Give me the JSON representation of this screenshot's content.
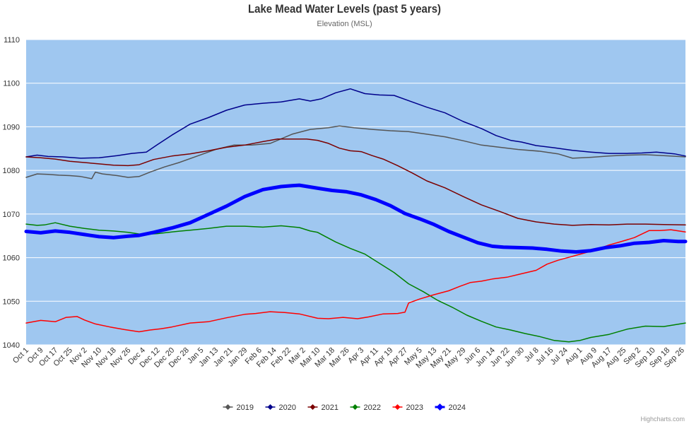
{
  "chart_data": {
    "type": "line",
    "title": "Lake Mead Water Levels (past 5 years)",
    "subtitle": "Elevation (MSL)",
    "credits": "Highcharts.com",
    "xlabel": "",
    "ylabel": "",
    "ylim": [
      1040,
      1110
    ],
    "yticks": [
      "1040",
      "1050",
      "1060",
      "1070",
      "1080",
      "1090",
      "1100",
      "1110"
    ],
    "xlim": [
      0,
      362
    ],
    "x_tick_positions": [
      0,
      8,
      16,
      24,
      32,
      40,
      48,
      56,
      64,
      72,
      80,
      88,
      96,
      104,
      112,
      120,
      128,
      136,
      144,
      152,
      160,
      168,
      176,
      184,
      192,
      200,
      208,
      216,
      224,
      232,
      240,
      248,
      256,
      264,
      272,
      280,
      288,
      296,
      304,
      312,
      320,
      328,
      336,
      344,
      352,
      360
    ],
    "categories": [
      "Oct 1",
      "Oct 9",
      "Oct 17",
      "Oct 25",
      "Nov 2",
      "Nov 10",
      "Nov 18",
      "Nov 26",
      "Dec 4",
      "Dec 12",
      "Dec 20",
      "Dec 28",
      "Jan 5",
      "Jan 13",
      "Jan 21",
      "Jan 29",
      "Feb 6",
      "Feb 14",
      "Feb 22",
      "Mar 2",
      "Mar 10",
      "Mar 18",
      "Mar 26",
      "Apr 3",
      "Apr 11",
      "Apr 19",
      "Apr 27",
      "May 5",
      "May 13",
      "May 21",
      "May 29",
      "Jun 6",
      "Jun 14",
      "Jun 22",
      "Jun 30",
      "Jul 8",
      "Jul 16",
      "Jul 24",
      "Aug 1",
      "Aug 9",
      "Aug 17",
      "Aug 25",
      "Sep 2",
      "Sep 10",
      "Sep 18",
      "Sep 26"
    ],
    "series": [
      {
        "name": "2019",
        "color": "#555555",
        "width": 1.5,
        "x": [
          0,
          6,
          12,
          18,
          24,
          30,
          36,
          38,
          42,
          50,
          56,
          62,
          68,
          76,
          84,
          96,
          104,
          114,
          124,
          134,
          146,
          156,
          166,
          172,
          180,
          190,
          200,
          210,
          220,
          230,
          240,
          250,
          260,
          270,
          282,
          292,
          300,
          310,
          320,
          330,
          340,
          350,
          362
        ],
        "values": [
          1078.4,
          1079.2,
          1079.1,
          1078.9,
          1078.8,
          1078.6,
          1078.1,
          1079.6,
          1079.2,
          1078.8,
          1078.4,
          1078.6,
          1079.6,
          1080.8,
          1081.8,
          1083.6,
          1084.8,
          1085.8,
          1085.8,
          1086.2,
          1088.3,
          1089.4,
          1089.8,
          1090.2,
          1089.8,
          1089.4,
          1089.1,
          1088.9,
          1088.3,
          1087.7,
          1086.8,
          1085.8,
          1085.3,
          1084.8,
          1084.4,
          1083.8,
          1082.8,
          1083.0,
          1083.3,
          1083.5,
          1083.6,
          1083.4,
          1083.1
        ]
      },
      {
        "name": "2020",
        "color": "#00008b",
        "width": 1.5,
        "x": [
          0,
          6,
          12,
          20,
          30,
          40,
          50,
          58,
          66,
          72,
          80,
          90,
          100,
          110,
          120,
          130,
          140,
          150,
          156,
          162,
          170,
          178,
          186,
          194,
          202,
          210,
          220,
          230,
          240,
          250,
          258,
          266,
          272,
          280,
          290,
          300,
          310,
          320,
          330,
          338,
          346,
          356,
          362
        ],
        "values": [
          1083.1,
          1083.5,
          1083.2,
          1083.1,
          1082.8,
          1082.9,
          1083.4,
          1083.9,
          1084.2,
          1085.9,
          1088.1,
          1090.6,
          1092.1,
          1093.8,
          1095.0,
          1095.4,
          1095.7,
          1096.4,
          1095.9,
          1096.4,
          1097.8,
          1098.7,
          1097.6,
          1097.3,
          1097.2,
          1096.0,
          1094.5,
          1093.2,
          1091.2,
          1089.6,
          1088.0,
          1086.9,
          1086.5,
          1085.7,
          1085.2,
          1084.6,
          1084.2,
          1083.9,
          1083.9,
          1084.0,
          1084.2,
          1083.8,
          1083.3
        ]
      },
      {
        "name": "2021",
        "color": "#7b0000",
        "width": 1.5,
        "x": [
          0,
          8,
          16,
          24,
          32,
          40,
          48,
          56,
          62,
          70,
          80,
          90,
          100,
          110,
          120,
          130,
          138,
          146,
          154,
          160,
          166,
          172,
          178,
          184,
          190,
          196,
          204,
          212,
          220,
          230,
          240,
          250,
          260,
          270,
          280,
          290,
          300,
          310,
          320,
          330,
          340,
          350,
          362
        ],
        "values": [
          1083.1,
          1082.9,
          1082.6,
          1082.1,
          1081.8,
          1081.5,
          1081.2,
          1081.1,
          1081.3,
          1082.5,
          1083.3,
          1083.8,
          1084.5,
          1085.3,
          1085.8,
          1086.6,
          1087.2,
          1087.2,
          1087.2,
          1086.9,
          1086.2,
          1085.1,
          1084.5,
          1084.3,
          1083.4,
          1082.6,
          1081.1,
          1079.4,
          1077.6,
          1076.0,
          1074.0,
          1072.1,
          1070.6,
          1069.0,
          1068.2,
          1067.7,
          1067.4,
          1067.6,
          1067.5,
          1067.7,
          1067.7,
          1067.6,
          1067.5
        ]
      },
      {
        "name": "2022",
        "color": "#008000",
        "width": 1.5,
        "x": [
          0,
          6,
          10,
          16,
          24,
          32,
          40,
          48,
          56,
          64,
          72,
          80,
          90,
          100,
          110,
          120,
          130,
          140,
          150,
          156,
          160,
          164,
          170,
          178,
          186,
          194,
          202,
          210,
          218,
          226,
          234,
          242,
          250,
          258,
          266,
          274,
          282,
          290,
          298,
          304,
          310,
          320,
          330,
          340,
          350,
          362
        ],
        "values": [
          1067.7,
          1067.4,
          1067.5,
          1068.0,
          1067.2,
          1066.7,
          1066.3,
          1066.1,
          1065.8,
          1065.3,
          1065.5,
          1065.9,
          1066.3,
          1066.7,
          1067.2,
          1067.2,
          1067.0,
          1067.3,
          1066.9,
          1066.1,
          1065.8,
          1064.9,
          1063.6,
          1062.1,
          1060.8,
          1058.7,
          1056.6,
          1054.0,
          1052.2,
          1050.2,
          1048.6,
          1046.8,
          1045.4,
          1044.1,
          1043.4,
          1042.6,
          1041.9,
          1041.0,
          1040.7,
          1041.0,
          1041.7,
          1042.4,
          1043.6,
          1044.3,
          1044.2,
          1045.0
        ]
      },
      {
        "name": "2023",
        "color": "#ff0000",
        "width": 1.5,
        "x": [
          0,
          8,
          16,
          22,
          28,
          32,
          38,
          46,
          54,
          62,
          68,
          74,
          80,
          90,
          100,
          110,
          120,
          126,
          134,
          142,
          150,
          160,
          166,
          174,
          182,
          188,
          196,
          204,
          208,
          210,
          216,
          224,
          232,
          238,
          244,
          250,
          256,
          264,
          272,
          280,
          286,
          292,
          300,
          306,
          312,
          320,
          326,
          334,
          342,
          348,
          354,
          362
        ],
        "values": [
          1045.0,
          1045.6,
          1045.3,
          1046.3,
          1046.5,
          1045.7,
          1044.8,
          1044.1,
          1043.5,
          1043.0,
          1043.4,
          1043.7,
          1044.1,
          1045.0,
          1045.3,
          1046.2,
          1047.0,
          1047.2,
          1047.6,
          1047.4,
          1047.1,
          1046.1,
          1046.0,
          1046.3,
          1046.0,
          1046.4,
          1047.1,
          1047.2,
          1047.5,
          1049.6,
          1050.5,
          1051.5,
          1052.4,
          1053.4,
          1054.3,
          1054.6,
          1055.1,
          1055.5,
          1056.3,
          1057.1,
          1058.5,
          1059.4,
          1060.3,
          1061.0,
          1061.7,
          1062.9,
          1063.6,
          1064.6,
          1066.2,
          1066.2,
          1066.4,
          1065.9
        ]
      },
      {
        "name": "2024",
        "color": "#0000ff",
        "width": 5,
        "x": [
          0,
          8,
          16,
          24,
          32,
          40,
          48,
          56,
          62,
          70,
          80,
          90,
          100,
          110,
          120,
          130,
          140,
          146,
          150,
          156,
          162,
          168,
          176,
          184,
          192,
          200,
          208,
          216,
          224,
          232,
          240,
          248,
          256,
          262,
          270,
          278,
          286,
          294,
          302,
          310,
          318,
          326,
          334,
          342,
          350,
          358,
          362
        ],
        "values": [
          1066.0,
          1065.7,
          1066.1,
          1065.8,
          1065.3,
          1064.8,
          1064.6,
          1064.9,
          1065.1,
          1065.8,
          1066.8,
          1068.0,
          1069.9,
          1071.8,
          1074.0,
          1075.6,
          1076.3,
          1076.5,
          1076.6,
          1076.2,
          1075.8,
          1075.4,
          1075.1,
          1074.4,
          1073.3,
          1071.9,
          1070.1,
          1068.9,
          1067.6,
          1066.0,
          1064.7,
          1063.4,
          1062.6,
          1062.4,
          1062.3,
          1062.2,
          1061.9,
          1061.5,
          1061.3,
          1061.6,
          1062.3,
          1062.7,
          1063.3,
          1063.5,
          1063.9,
          1063.7,
          1063.7
        ]
      }
    ],
    "legend_position": "bottom"
  }
}
